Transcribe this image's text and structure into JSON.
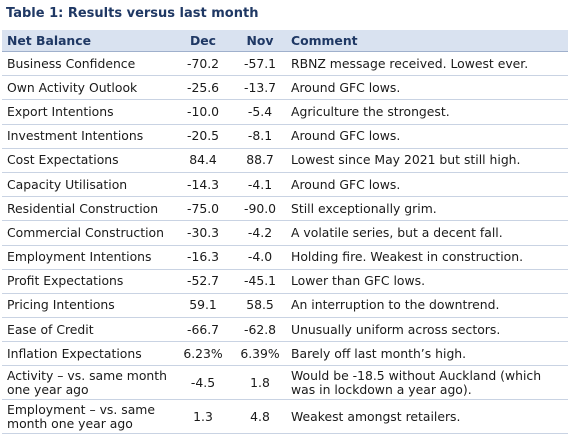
{
  "title": "Table 1: Results versus last month",
  "columns": {
    "metric": "Net Balance",
    "dec": "Dec",
    "nov": "Nov",
    "comment": "Comment"
  },
  "rows": [
    {
      "metric": "Business Confidence",
      "dec": "-70.2",
      "nov": "-57.1",
      "comment": "RBNZ message received. Lowest ever."
    },
    {
      "metric": "Own Activity Outlook",
      "dec": "-25.6",
      "nov": "-13.7",
      "comment": "Around GFC lows."
    },
    {
      "metric": "Export Intentions",
      "dec": "-10.0",
      "nov": "-5.4",
      "comment": "Agriculture the strongest."
    },
    {
      "metric": "Investment Intentions",
      "dec": "-20.5",
      "nov": "-8.1",
      "comment": "Around GFC lows."
    },
    {
      "metric": "Cost Expectations",
      "dec": "84.4",
      "nov": "88.7",
      "comment": "Lowest since May 2021 but still high."
    },
    {
      "metric": "Capacity Utilisation",
      "dec": "-14.3",
      "nov": "-4.1",
      "comment": "Around GFC lows."
    },
    {
      "metric": "Residential Construction",
      "dec": "-75.0",
      "nov": "-90.0",
      "comment": "Still exceptionally grim."
    },
    {
      "metric": "Commercial Construction",
      "dec": "-30.3",
      "nov": "-4.2",
      "comment": "A volatile series, but a decent fall."
    },
    {
      "metric": "Employment Intentions",
      "dec": "-16.3",
      "nov": "-4.0",
      "comment": "Holding fire. Weakest in construction."
    },
    {
      "metric": "Profit Expectations",
      "dec": "-52.7",
      "nov": "-45.1",
      "comment": "Lower than GFC lows."
    },
    {
      "metric": "Pricing Intentions",
      "dec": "59.1",
      "nov": "58.5",
      "comment": "An interruption to the downtrend."
    },
    {
      "metric": "Ease of Credit",
      "dec": "-66.7",
      "nov": "-62.8",
      "comment": "Unusually uniform across sectors."
    },
    {
      "metric": "Inflation Expectations",
      "dec": "6.23%",
      "nov": "6.39%",
      "comment": "Barely off last month’s high."
    },
    {
      "metric": "Activity – vs. same month one year ago",
      "dec": "-4.5",
      "nov": "1.8",
      "comment": "Would be -18.5 without Auckland (which was in lockdown a year ago)."
    },
    {
      "metric": "Employment – vs. same month one year ago",
      "dec": "1.3",
      "nov": "4.8",
      "comment": "Weakest amongst retailers."
    }
  ],
  "colors": {
    "title": "#1f3864",
    "header_bg": "#d9e2f0",
    "header_text": "#1f3864",
    "row_rule": "#c9d3e3"
  }
}
